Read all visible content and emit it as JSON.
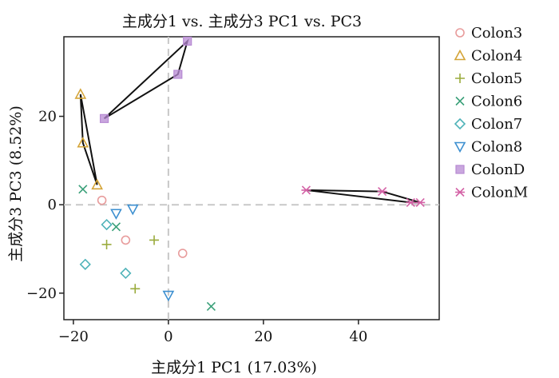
{
  "chart_data": {
    "type": "scatter",
    "title": "主成分1 vs. 主成分3 PC1 vs. PC3",
    "xlabel": "主成分1 PC1 (17.03%)",
    "ylabel": "主成分3 PC3 (8.52%)",
    "xlim": [
      -22,
      57
    ],
    "ylim": [
      -26,
      38
    ],
    "xticks": [
      -20,
      0,
      20,
      40
    ],
    "yticks": [
      -20,
      0,
      20
    ],
    "reference_lines": {
      "x": 0,
      "y": 0
    },
    "grid": false,
    "legend_position": "right",
    "series": [
      {
        "name": "Colon3",
        "marker": "circle",
        "color": "#e89c9c",
        "points": [
          [
            -14,
            1
          ],
          [
            -9,
            -8
          ],
          [
            3,
            -11
          ]
        ]
      },
      {
        "name": "Colon4",
        "marker": "triangle-up",
        "color": "#d4a437",
        "points": [
          [
            -18.5,
            25
          ],
          [
            -18,
            14
          ],
          [
            -15,
            4.5
          ]
        ],
        "hull": true
      },
      {
        "name": "Colon5",
        "marker": "plus",
        "color": "#9aab3c",
        "points": [
          [
            -13,
            -9
          ],
          [
            -3,
            -8
          ],
          [
            -7,
            -19
          ]
        ]
      },
      {
        "name": "Colon6",
        "marker": "cross",
        "color": "#3aa079",
        "points": [
          [
            -18,
            3.5
          ],
          [
            -11,
            -5
          ],
          [
            9,
            -23
          ]
        ]
      },
      {
        "name": "Colon7",
        "marker": "diamond",
        "color": "#4fb3b9",
        "points": [
          [
            -13,
            -4.5
          ],
          [
            -17.5,
            -13.5
          ],
          [
            -9,
            -15.5
          ]
        ]
      },
      {
        "name": "Colon8",
        "marker": "triangle-down",
        "color": "#3c8fd0",
        "points": [
          [
            -11,
            -2
          ],
          [
            -7.5,
            -1
          ],
          [
            0,
            -20.5
          ]
        ]
      },
      {
        "name": "ColonD",
        "marker": "square",
        "color": "#b78ad3",
        "points": [
          [
            -13.5,
            19.5
          ],
          [
            2,
            29.5
          ],
          [
            4,
            37
          ]
        ],
        "hull": true
      },
      {
        "name": "ColonM",
        "marker": "asterisk",
        "color": "#d462a6",
        "points": [
          [
            29,
            3.3
          ],
          [
            45,
            3
          ],
          [
            51,
            0.5
          ],
          [
            53,
            0.5
          ]
        ],
        "hull": true
      }
    ]
  }
}
